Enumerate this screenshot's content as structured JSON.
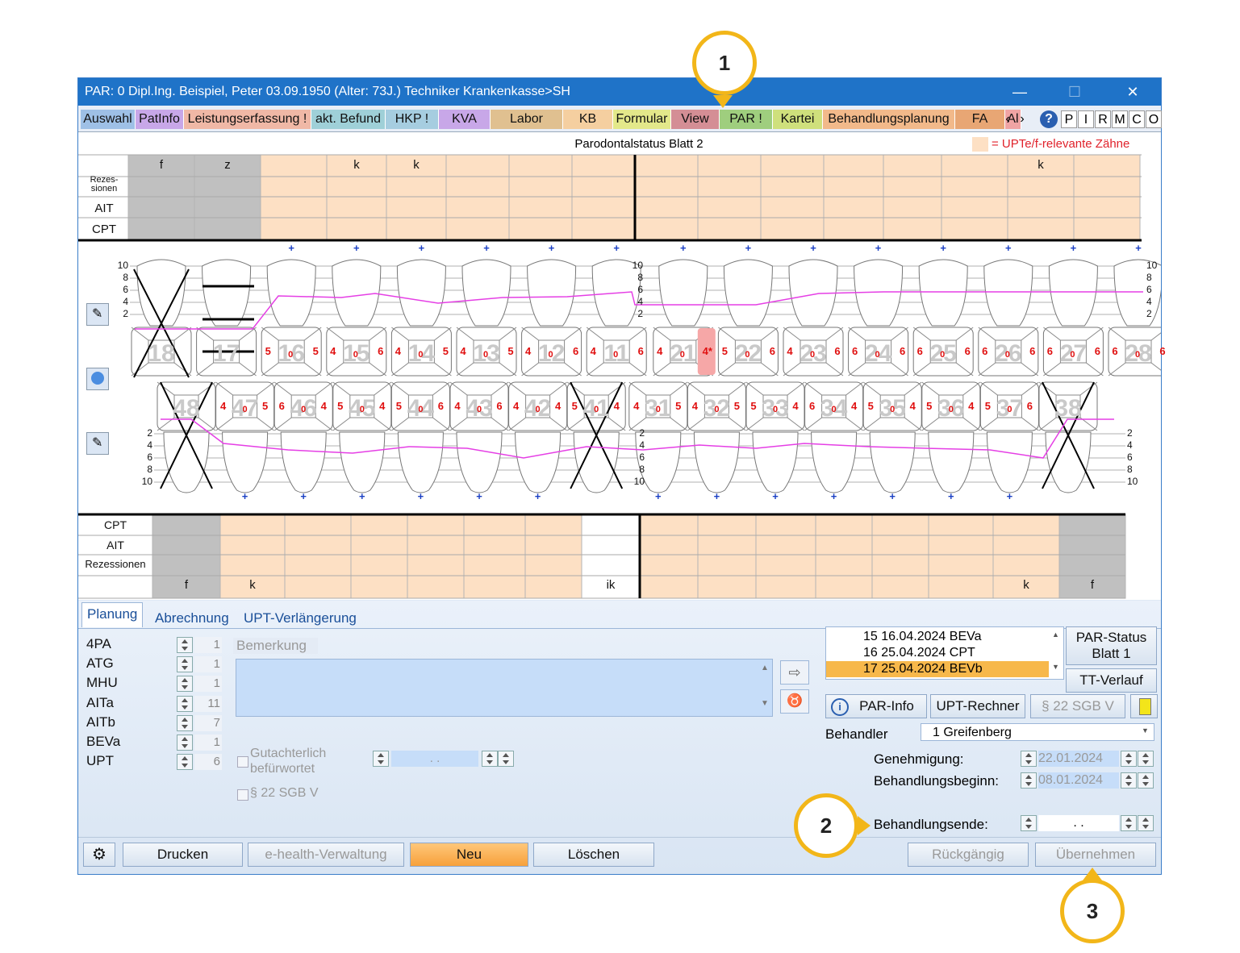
{
  "window": {
    "title": "PAR: 0  Dipl.Ing. Beispiel, Peter  03.09.1950 (Alter: 73J.)  Techniker Krankenkasse>SH",
    "minimize": "—",
    "maximize": "☐",
    "close": "✕"
  },
  "main_tabs": [
    {
      "label": "Auswahl",
      "color": "#9ec0e6"
    },
    {
      "label": "PatInfo",
      "color": "#c8a7e8"
    },
    {
      "label": "Leistungserfassung !",
      "color": "#f0b8a6"
    },
    {
      "label": "akt. Befund",
      "color": "#9fd0d8"
    },
    {
      "label": "HKP !",
      "color": "#a6cde0"
    },
    {
      "label": "KVA",
      "color": "#c8a7e8"
    },
    {
      "label": "Labor",
      "color": "#e0c090"
    },
    {
      "label": "KB",
      "color": "#f5cfa0"
    },
    {
      "label": "Formular",
      "color": "#e3e88a"
    },
    {
      "label": "View",
      "color": "#d48e95"
    },
    {
      "label": "PAR !",
      "color": "#9fce7e"
    },
    {
      "label": "Kartei",
      "color": "#cfe07c"
    },
    {
      "label": "Behandlungsplanung",
      "color": "#f2b98a"
    },
    {
      "label": "FA",
      "color": "#e8a674"
    },
    {
      "label": "Al",
      "color": "#f0a4a4"
    }
  ],
  "tab_scroll": {
    "left": "‹",
    "right": "›"
  },
  "quick_buttons": [
    "P",
    "I",
    "R",
    "M",
    "C",
    "O"
  ],
  "help_icon": "?",
  "chart": {
    "title": "Parodontalstatus Blatt 2",
    "legend": "= UPTe/f-relevante Zähne",
    "upper_row_labels": [
      "Rezes-\nsionen",
      "AIT",
      "CPT"
    ],
    "upper_markers": [
      {
        "col": 0,
        "text": "f"
      },
      {
        "col": 1,
        "text": "z"
      },
      {
        "col": 3,
        "text": "k"
      },
      {
        "col": 4,
        "text": "k"
      },
      {
        "col": 14,
        "text": "k"
      }
    ],
    "lower_row_labels": [
      "CPT",
      "AIT",
      "Rezessionen"
    ],
    "lower_markers": [
      {
        "col": 0,
        "text": "f"
      },
      {
        "col": 1,
        "text": "k"
      },
      {
        "col": 7,
        "text": "ik"
      },
      {
        "col": 14,
        "text": "k"
      },
      {
        "col": 15,
        "text": "f"
      }
    ],
    "scale_upper": [
      "10",
      "8",
      "6",
      "4",
      "2"
    ],
    "scale_lower": [
      "2",
      "4",
      "6",
      "8",
      "10"
    ],
    "upper_teeth": [
      {
        "num": "18",
        "l": "",
        "c": "",
        "r": "",
        "x": true
      },
      {
        "num": "17",
        "l": "",
        "c": "",
        "r": "",
        "x": false
      },
      {
        "num": "16",
        "l": "5",
        "c": "0",
        "r": "5",
        "x": false
      },
      {
        "num": "15",
        "l": "4",
        "c": "0",
        "r": "6",
        "x": false
      },
      {
        "num": "14",
        "l": "4",
        "c": "0",
        "r": "5",
        "x": false
      },
      {
        "num": "13",
        "l": "4",
        "c": "0",
        "r": "5",
        "x": false
      },
      {
        "num": "12",
        "l": "4",
        "c": "0",
        "r": "6",
        "x": false
      },
      {
        "num": "11",
        "l": "4",
        "c": "0",
        "r": "6",
        "x": false
      },
      {
        "num": "21",
        "l": "4",
        "c": "0",
        "r": "4*",
        "x": false
      },
      {
        "num": "22",
        "l": "5",
        "c": "0",
        "r": "6",
        "x": false
      },
      {
        "num": "23",
        "l": "4",
        "c": "0",
        "r": "6",
        "x": false
      },
      {
        "num": "24",
        "l": "6",
        "c": "0",
        "r": "6",
        "x": false
      },
      {
        "num": "25",
        "l": "6",
        "c": "0",
        "r": "6",
        "x": false
      },
      {
        "num": "26",
        "l": "6",
        "c": "0",
        "r": "6",
        "x": false
      },
      {
        "num": "27",
        "l": "6",
        "c": "0",
        "r": "6",
        "x": false
      },
      {
        "num": "28",
        "l": "6",
        "c": "0",
        "r": "6",
        "x": false
      }
    ],
    "lower_teeth": [
      {
        "num": "48",
        "l": "",
        "c": "",
        "r": "",
        "x": true
      },
      {
        "num": "47",
        "l": "4",
        "c": "0",
        "r": "5",
        "x": false
      },
      {
        "num": "46",
        "l": "6",
        "c": "0",
        "r": "4",
        "x": false
      },
      {
        "num": "45",
        "l": "5",
        "c": "0",
        "r": "4",
        "x": false
      },
      {
        "num": "44",
        "l": "5",
        "c": "0",
        "r": "6",
        "x": false
      },
      {
        "num": "43",
        "l": "4",
        "c": "0",
        "r": "6",
        "x": false
      },
      {
        "num": "42",
        "l": "4",
        "c": "0",
        "r": "4",
        "x": false
      },
      {
        "num": "41",
        "l": "5",
        "c": "0",
        "r": "4",
        "x": true
      },
      {
        "num": "31",
        "l": "4",
        "c": "0",
        "r": "5",
        "x": false
      },
      {
        "num": "32",
        "l": "4",
        "c": "0",
        "r": "5",
        "x": false
      },
      {
        "num": "33",
        "l": "5",
        "c": "0",
        "r": "4",
        "x": false
      },
      {
        "num": "34",
        "l": "6",
        "c": "0",
        "r": "4",
        "x": false
      },
      {
        "num": "35",
        "l": "5",
        "c": "0",
        "r": "4",
        "x": false
      },
      {
        "num": "36",
        "l": "5",
        "c": "0",
        "r": "4",
        "x": false
      },
      {
        "num": "37",
        "l": "5",
        "c": "0",
        "r": "6",
        "x": false
      },
      {
        "num": "38",
        "l": "",
        "c": "",
        "r": "",
        "x": true
      }
    ],
    "plus": "+"
  },
  "panel": {
    "tabs": [
      "Planung",
      "Abrechnung",
      "UPT-Verlängerung"
    ],
    "counters": [
      {
        "label": "4PA",
        "value": "1"
      },
      {
        "label": "ATG",
        "value": "1"
      },
      {
        "label": "MHU",
        "value": "1"
      },
      {
        "label": "AITa",
        "value": "11"
      },
      {
        "label": "AITb",
        "value": "7"
      },
      {
        "label": "BEVa",
        "value": "1"
      },
      {
        "label": "UPT",
        "value": "6"
      }
    ],
    "bemerkung_label": "Bemerkung",
    "gutachterlich": "Gutachterlich\nbefürwortet",
    "sgb_checkbox": "§ 22 SGB V",
    "date_placeholder": ".   .",
    "list": [
      {
        "text": "15  16.04.2024  BEVa",
        "selected": false
      },
      {
        "text": "16  25.04.2024  CPT",
        "selected": false
      },
      {
        "text": "17  25.04.2024  BEVb",
        "selected": true
      }
    ],
    "btn_par_status": "PAR-Status\nBlatt 1",
    "btn_tt_verlauf": "TT-Verlauf",
    "btn_par_info": "PAR-Info",
    "btn_upt_rechner": "UPT-Rechner",
    "btn_sgb": "§ 22 SGB V",
    "behandler_label": "Behandler",
    "behandler_value": "1 Greifenberg",
    "genehmigung_label": "Genehmigung:",
    "genehmigung_value": "22.01.2024",
    "beginn_label": "Behandlungsbeginn:",
    "beginn_value": "08.01.2024",
    "ende_label": "Behandlungsende:",
    "ende_value": ".   .",
    "btn_drucken": "Drucken",
    "btn_ehealth": "e-health-Verwaltung",
    "btn_neu": "Neu",
    "btn_loeschen": "Löschen",
    "btn_rueckgaengig": "Rückgängig",
    "btn_uebernehmen": "Übernehmen"
  },
  "callouts": [
    "1",
    "2",
    "3"
  ],
  "colors": {
    "accent": "#f2b619",
    "relevant": "#fde0c4",
    "title": "#1f73c8",
    "selected": "#f7b84b",
    "magenta": "#e53fe5"
  }
}
